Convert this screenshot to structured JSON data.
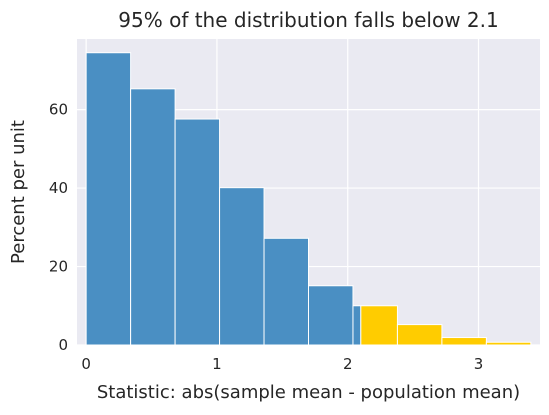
{
  "chart_data": {
    "type": "bar",
    "title": "95% of the distribution falls below 2.1",
    "xlabel": "Statistic: abs(sample mean - population mean)",
    "ylabel": "Percent per unit",
    "xlim": [
      -0.07,
      3.47
    ],
    "ylim": [
      0,
      78
    ],
    "xticks": [
      0,
      1,
      2,
      3
    ],
    "yticks": [
      0,
      20,
      40,
      60
    ],
    "grid": true,
    "bin_width": 0.34,
    "series": [
      {
        "color": "#4a8fc3",
        "bins": [
          {
            "start": 0.0,
            "end": 0.34,
            "value": 74.5
          },
          {
            "start": 0.34,
            "end": 0.68,
            "value": 65.3
          },
          {
            "start": 0.68,
            "end": 1.02,
            "value": 57.6
          },
          {
            "start": 1.02,
            "end": 1.36,
            "value": 40.1
          },
          {
            "start": 1.36,
            "end": 1.7,
            "value": 27.2
          },
          {
            "start": 1.7,
            "end": 2.04,
            "value": 15.1
          },
          {
            "start": 2.04,
            "end": 2.1,
            "value": 10.0
          }
        ]
      },
      {
        "color": "#ffcc00",
        "bins": [
          {
            "start": 2.1,
            "end": 2.38,
            "value": 10.0
          },
          {
            "start": 2.38,
            "end": 2.72,
            "value": 5.2
          },
          {
            "start": 2.72,
            "end": 3.06,
            "value": 1.9
          },
          {
            "start": 3.06,
            "end": 3.4,
            "value": 0.7
          }
        ]
      }
    ]
  },
  "style": {
    "plot_background": "#eaeaf2",
    "grid_color": "#ffffff",
    "text_color": "#262626"
  }
}
